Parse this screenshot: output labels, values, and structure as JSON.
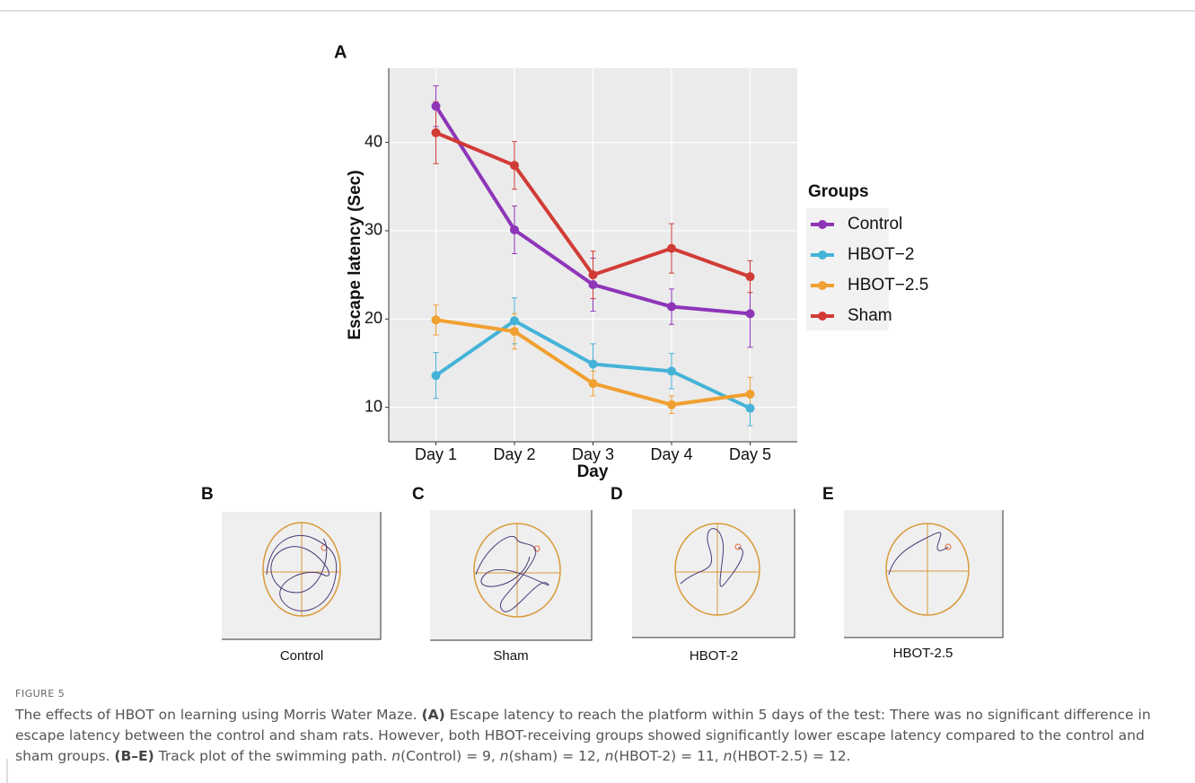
{
  "chart_data": {
    "type": "line",
    "panel_label": "A",
    "x_label": "Day",
    "y_label": "Escape latency (Sec)",
    "categories": [
      "Day 1",
      "Day 2",
      "Day 3",
      "Day 4",
      "Day 5"
    ],
    "series": [
      {
        "name": "Control",
        "color": "#8e35b8",
        "values": [
          44.1,
          30.1,
          23.9,
          21.4,
          20.6
        ],
        "errors": [
          2.3,
          2.7,
          3.0,
          2.0,
          3.8
        ]
      },
      {
        "name": "HBOT−2",
        "color": "#45b3d8",
        "values": [
          13.6,
          19.8,
          14.9,
          14.1,
          9.9
        ],
        "errors": [
          2.6,
          2.6,
          2.3,
          2.0,
          2.0
        ]
      },
      {
        "name": "HBOT−2.5",
        "color": "#f0a030",
        "values": [
          19.9,
          18.6,
          12.7,
          10.3,
          11.5
        ],
        "errors": [
          1.7,
          2.0,
          1.4,
          1.0,
          1.9
        ]
      },
      {
        "name": "Sham",
        "color": "#d13b36",
        "values": [
          41.1,
          37.4,
          25.0,
          28.0,
          24.8
        ],
        "errors": [
          3.5,
          2.7,
          2.7,
          2.8,
          1.8
        ]
      }
    ],
    "legend_title": "Groups",
    "legend": "right",
    "ylim": [
      6.1,
      48.4
    ],
    "yticks": [
      10,
      20,
      30,
      40
    ],
    "grid": true
  },
  "track_plots": [
    {
      "label": "B",
      "caption": "Control"
    },
    {
      "label": "C",
      "caption": "Sham"
    },
    {
      "label": "D",
      "caption": "HBOT-2"
    },
    {
      "label": "E",
      "caption": "HBOT-2.5"
    }
  ],
  "caption": {
    "figure_label": "FIGURE 5",
    "segments": [
      "The effects of HBOT on learning using Morris Water Maze. ",
      "(A)",
      " Escape latency to reach the platform within 5 days of the test: There was no significant difference in escape latency between the control and sham rats. However, both HBOT-receiving groups showed significantly lower escape latency compared to the control and sham groups. ",
      "(B–E)",
      " Track plot of the swimming path. ",
      "n",
      "(Control) = 9, ",
      "n",
      "(sham) = 12, ",
      "n",
      "(HBOT-2) = 11, ",
      "n",
      "(HBOT-2.5) = 12."
    ]
  }
}
